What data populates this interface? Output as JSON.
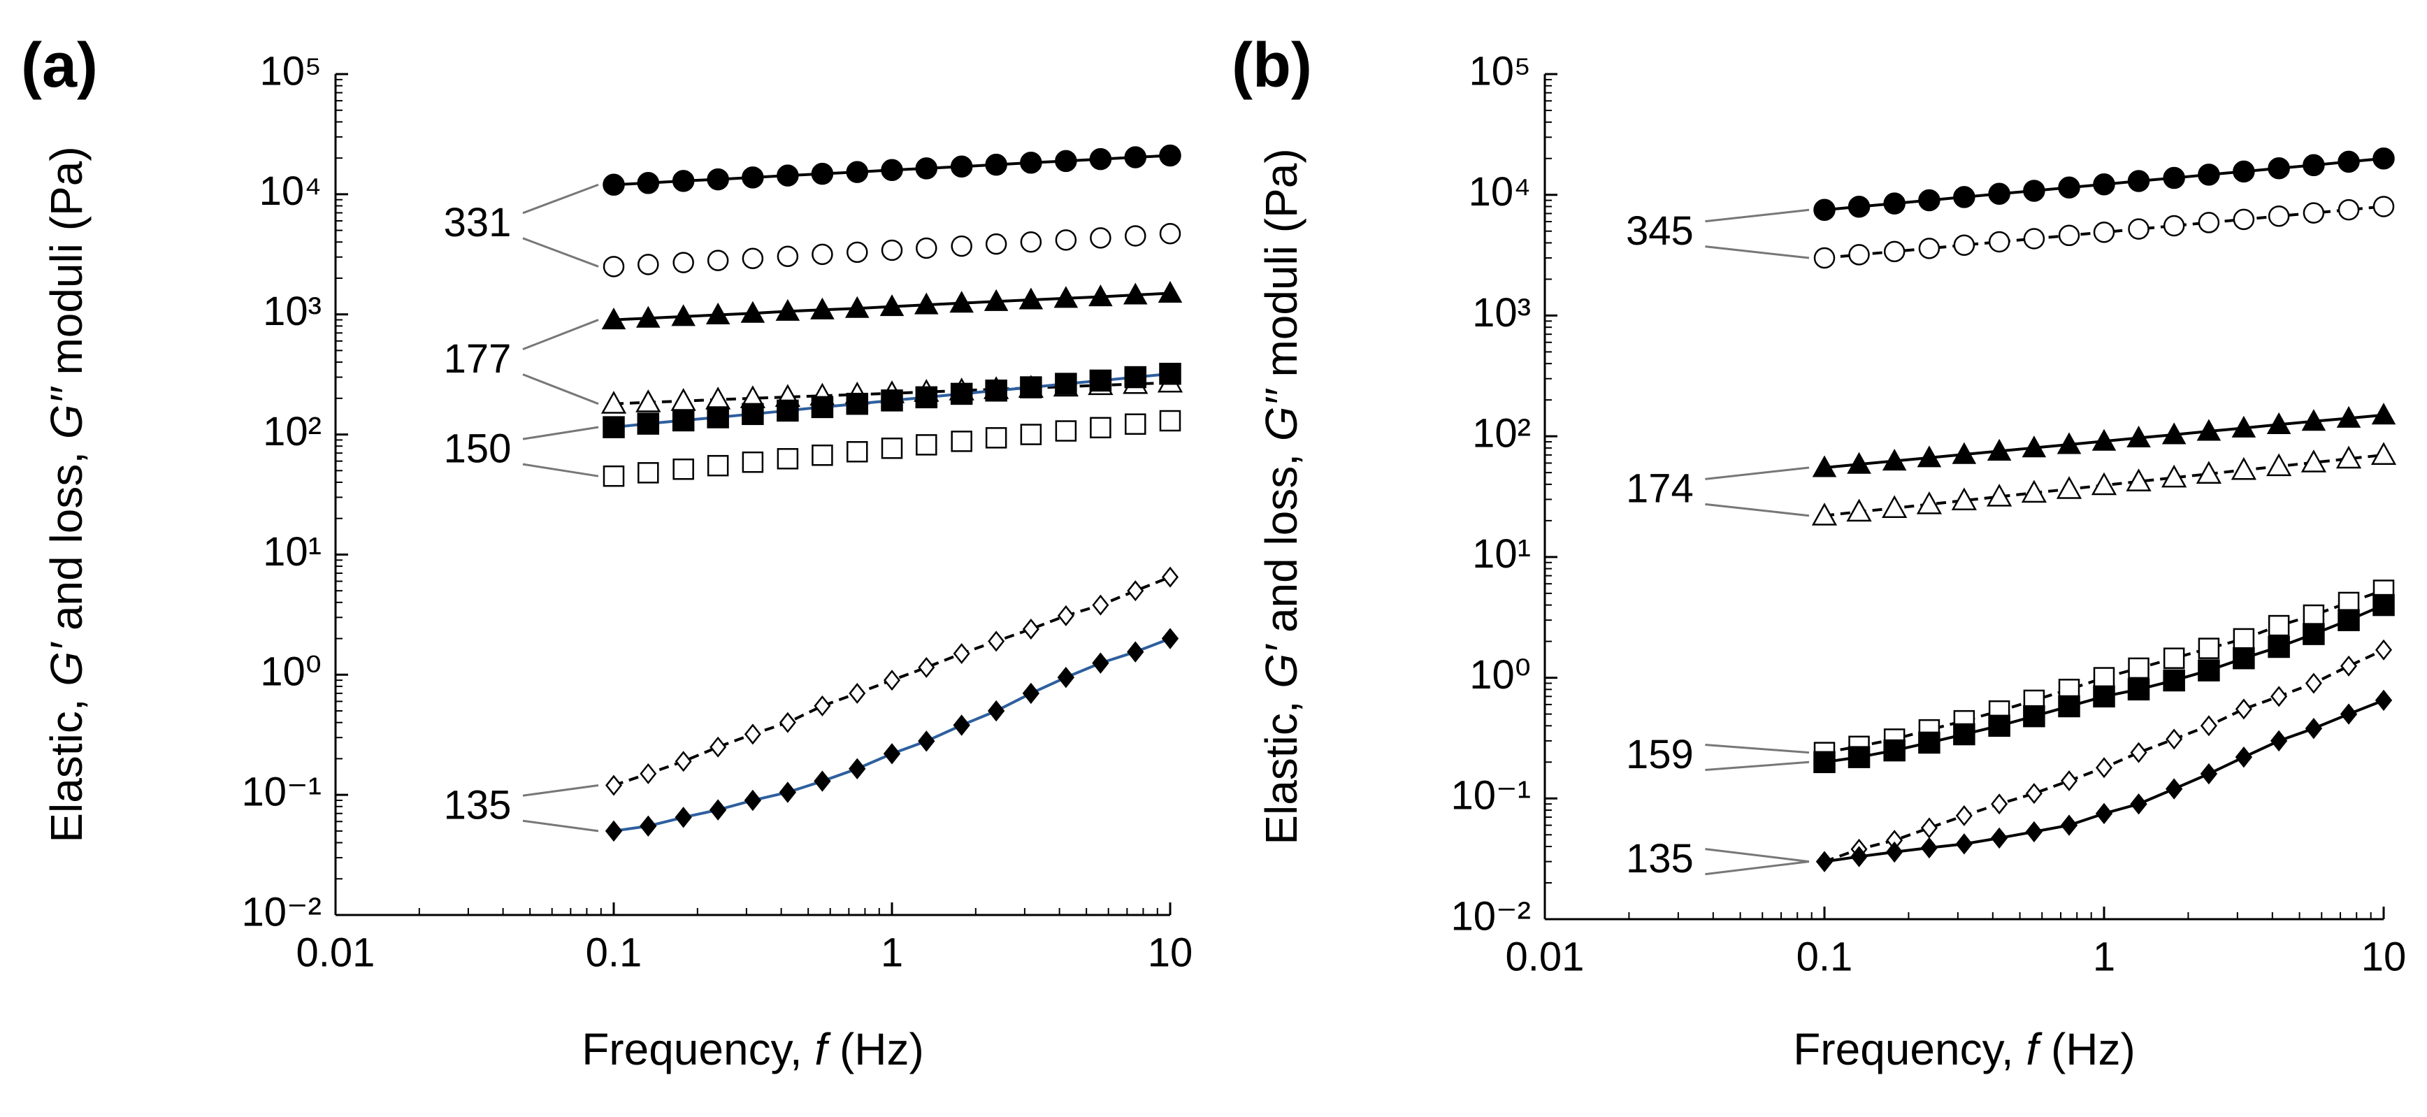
{
  "chart_data": [
    {
      "type": "line",
      "title": "(a)",
      "log_x": true,
      "log_y": true,
      "x": [
        0.1,
        0.133,
        0.178,
        0.237,
        0.316,
        0.422,
        0.562,
        0.75,
        1,
        1.33,
        1.78,
        2.37,
        3.16,
        4.22,
        5.62,
        7.5,
        10
      ],
      "xlim": [
        0.01,
        10
      ],
      "xticks": [
        0.01,
        0.1,
        1,
        10
      ],
      "ylim": [
        0.01,
        100000
      ],
      "yticks": [
        {
          "value": 0.01,
          "label": "10⁻²"
        },
        {
          "value": 0.1,
          "label": "10⁻¹"
        },
        {
          "value": 1,
          "label": "10⁰"
        },
        {
          "value": 10,
          "label": "10¹"
        },
        {
          "value": 100,
          "label": "10²"
        },
        {
          "value": 1000,
          "label": "10³"
        },
        {
          "value": 10000,
          "label": "10⁴"
        },
        {
          "value": 100000,
          "label": "10⁵"
        }
      ],
      "xlabel": [
        "Frequency, ",
        "f",
        " (Hz)"
      ],
      "ylabel": [
        "Elastic, ",
        "G′",
        " and loss, ",
        "G′′",
        " moduli (Pa)"
      ],
      "annotations": [
        "331",
        "177",
        "150",
        "135"
      ],
      "series": [
        {
          "marker": "circle",
          "color": "#000000",
          "line": "solid",
          "line_color": "#000000",
          "values": [
            12000,
            12400,
            12900,
            13300,
            13800,
            14300,
            14800,
            15300,
            15900,
            16400,
            17000,
            17600,
            18300,
            18900,
            19600,
            20300,
            21000
          ]
        },
        {
          "marker": "circle",
          "color": "#ffffff",
          "line": "none",
          "line_color": "#000000",
          "values": [
            2500,
            2600,
            2700,
            2810,
            2920,
            3040,
            3160,
            3290,
            3420,
            3560,
            3700,
            3850,
            4000,
            4160,
            4330,
            4500,
            4700
          ]
        },
        {
          "marker": "triangle",
          "color": "#000000",
          "line": "solid",
          "line_color": "#000000",
          "values": [
            900,
            929,
            959,
            990,
            1020,
            1060,
            1090,
            1120,
            1160,
            1200,
            1240,
            1280,
            1320,
            1360,
            1400,
            1450,
            1500
          ]
        },
        {
          "marker": "triangle",
          "color": "#ffffff",
          "line": "dashed",
          "line_color": "#000000",
          "values": [
            180,
            185,
            190,
            195,
            200,
            205,
            210,
            215,
            220,
            226,
            232,
            238,
            244,
            250,
            257,
            263,
            270
          ]
        },
        {
          "marker": "square",
          "color": "#000000",
          "line": "solid",
          "line_color": "#2e5f9e",
          "values": [
            115,
            123,
            131,
            139,
            148,
            158,
            169,
            180,
            192,
            204,
            218,
            232,
            247,
            264,
            281,
            300,
            320
          ]
        },
        {
          "marker": "square",
          "color": "#ffffff",
          "line": "none",
          "line_color": "#000000",
          "values": [
            45,
            48,
            51.4,
            55,
            58.8,
            62.8,
            67.2,
            71.8,
            76.8,
            82,
            87.7,
            93.8,
            100,
            107,
            114,
            122,
            130
          ]
        },
        {
          "marker": "diamond",
          "color": "#ffffff",
          "line": "dashed",
          "line_color": "#000000",
          "values": [
            0.12,
            0.15,
            0.19,
            0.25,
            0.32,
            0.4,
            0.55,
            0.7,
            0.9,
            1.15,
            1.5,
            1.9,
            2.4,
            3.1,
            3.8,
            5.0,
            6.5
          ]
        },
        {
          "marker": "diamond",
          "color": "#000000",
          "line": "solid",
          "line_color": "#2e5f9e",
          "values": [
            0.05,
            0.055,
            0.065,
            0.075,
            0.09,
            0.105,
            0.13,
            0.165,
            0.22,
            0.28,
            0.38,
            0.5,
            0.7,
            0.95,
            1.25,
            1.55,
            2.0
          ]
        }
      ]
    },
    {
      "type": "line",
      "title": "(b)",
      "log_x": true,
      "log_y": true,
      "x": [
        0.1,
        0.133,
        0.178,
        0.237,
        0.316,
        0.422,
        0.562,
        0.75,
        1,
        1.33,
        1.78,
        2.37,
        3.16,
        4.22,
        5.62,
        7.5,
        10
      ],
      "xlim": [
        0.01,
        10
      ],
      "xticks": [
        0.01,
        0.1,
        1,
        10
      ],
      "ylim": [
        0.01,
        100000
      ],
      "yticks": [
        {
          "value": 0.01,
          "label": "10⁻²"
        },
        {
          "value": 0.1,
          "label": "10⁻¹"
        },
        {
          "value": 1,
          "label": "10⁰"
        },
        {
          "value": 10,
          "label": "10¹"
        },
        {
          "value": 100,
          "label": "10²"
        },
        {
          "value": 1000,
          "label": "10³"
        },
        {
          "value": 10000,
          "label": "10⁴"
        },
        {
          "value": 100000,
          "label": "10⁵"
        }
      ],
      "xlabel": [
        "Frequency, ",
        "f",
        " (Hz)"
      ],
      "ylabel": [
        "Elastic, ",
        "G′",
        " and loss, ",
        "G′′",
        " moduli (Pa)"
      ],
      "annotations": [
        "345",
        "174",
        "159",
        "135"
      ],
      "series": [
        {
          "marker": "circle",
          "color": "#000000",
          "line": "solid",
          "line_color": "#000000",
          "values": [
            7500,
            7970,
            8480,
            9010,
            9580,
            10200,
            10800,
            11500,
            12200,
            13000,
            13800,
            14700,
            15600,
            16600,
            17600,
            18800,
            20000
          ]
        },
        {
          "marker": "circle",
          "color": "#ffffff",
          "line": "dashed",
          "line_color": "#000000",
          "values": [
            3000,
            3190,
            3390,
            3600,
            3830,
            4080,
            4330,
            4610,
            4900,
            5210,
            5540,
            5890,
            6260,
            6660,
            7080,
            7520,
            8000
          ]
        },
        {
          "marker": "triangle",
          "color": "#000000",
          "line": "solid",
          "line_color": "#000000",
          "values": [
            55,
            58.6,
            62.4,
            66.4,
            70.7,
            75.3,
            80.2,
            85.4,
            91,
            96.9,
            103,
            110,
            117,
            125,
            133,
            141,
            150
          ]
        },
        {
          "marker": "triangle",
          "color": "#ffffff",
          "line": "dashed",
          "line_color": "#000000",
          "values": [
            22,
            23.7,
            25.4,
            27.3,
            29.4,
            31.6,
            34,
            36.5,
            39.3,
            42.2,
            45.4,
            48.8,
            52.5,
            56.4,
            60.6,
            65.2,
            70
          ]
        },
        {
          "marker": "square",
          "color": "#ffffff",
          "line": "dashed",
          "line_color": "#000000",
          "values": [
            0.24,
            0.27,
            0.31,
            0.37,
            0.44,
            0.53,
            0.65,
            0.8,
            1.0,
            1.2,
            1.45,
            1.75,
            2.1,
            2.7,
            3.3,
            4.2,
            5.3
          ]
        },
        {
          "marker": "square",
          "color": "#000000",
          "line": "solid",
          "line_color": "#000000",
          "values": [
            0.2,
            0.22,
            0.25,
            0.29,
            0.34,
            0.4,
            0.48,
            0.58,
            0.7,
            0.8,
            0.95,
            1.15,
            1.45,
            1.8,
            2.3,
            3.0,
            4.0
          ]
        },
        {
          "marker": "diamond",
          "color": "#ffffff",
          "line": "dashed",
          "line_color": "#000000",
          "values": [
            0.03,
            0.038,
            0.045,
            0.057,
            0.072,
            0.09,
            0.11,
            0.14,
            0.18,
            0.24,
            0.31,
            0.4,
            0.55,
            0.7,
            0.9,
            1.25,
            1.7
          ]
        },
        {
          "marker": "diamond",
          "color": "#000000",
          "line": "solid",
          "line_color": "#000000",
          "values": [
            0.03,
            0.033,
            0.036,
            0.039,
            0.042,
            0.047,
            0.053,
            0.06,
            0.075,
            0.09,
            0.12,
            0.16,
            0.22,
            0.3,
            0.38,
            0.5,
            0.65
          ]
        }
      ]
    }
  ]
}
